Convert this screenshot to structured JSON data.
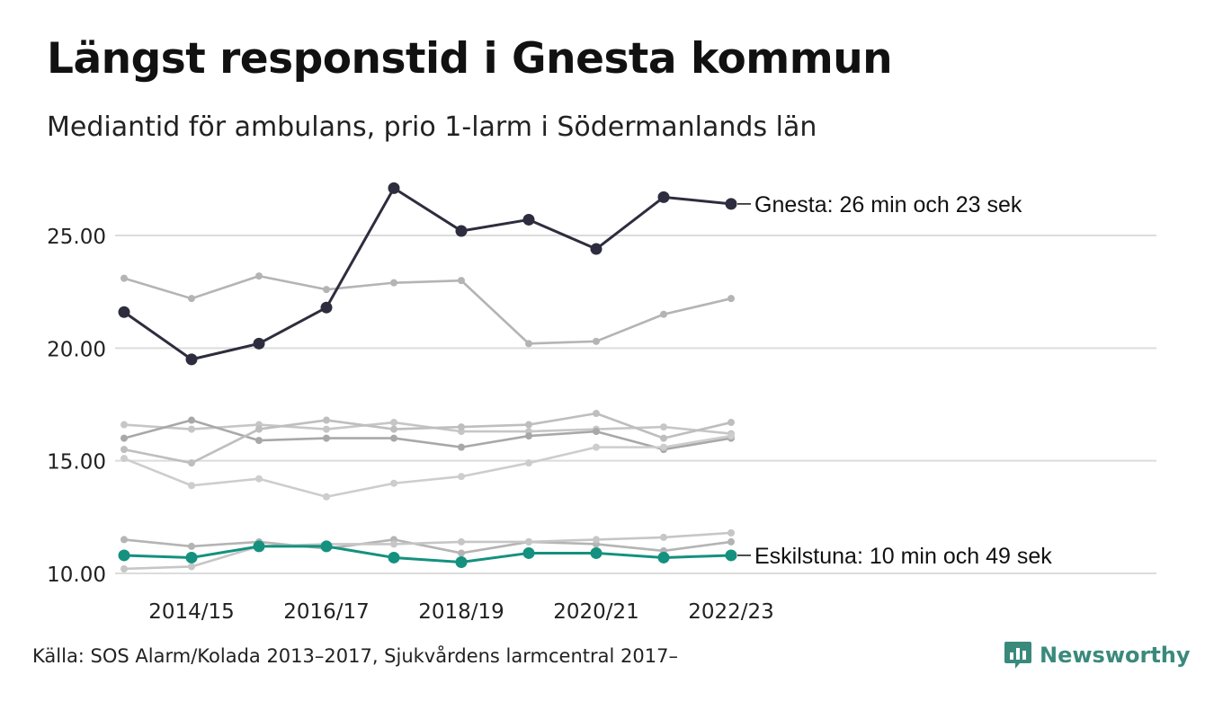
{
  "title": "Längst responstid i Gnesta kommun",
  "subtitle": "Mediantid för ambulans, prio 1-larm i Södermanlands län",
  "source": "Källa: SOS Alarm/Kolada 2013–2017, Sjukvårdens larmcentral 2017–",
  "brand": {
    "name": "Newsworthy",
    "icon": "newsworthy-logo-icon",
    "color": "#3a8a7c"
  },
  "chart_data": {
    "type": "line",
    "x": [
      "2013/14",
      "2014/15",
      "2015/16",
      "2016/17",
      "2017/18",
      "2018/19",
      "2019/20",
      "2020/21",
      "2021/22",
      "2022/23"
    ],
    "x_tick_labels": [
      "2014/15",
      "2016/17",
      "2018/19",
      "2020/21",
      "2022/23"
    ],
    "y_ticks": [
      "10.00",
      "15.00",
      "20.00",
      "25.00"
    ],
    "ylim": [
      9.5,
      28.5
    ],
    "grid": "horizontal",
    "colors": {
      "highlight_dark": "#2e2d3f",
      "highlight_teal": "#14917f",
      "muted": [
        "#b4b4b4",
        "#c6c6c6",
        "#a8a8a8",
        "#bebebe",
        "#cdcdcd"
      ]
    },
    "series": [
      {
        "values": [
          23.1,
          22.2,
          23.2,
          22.6,
          22.9,
          23.0,
          20.2,
          20.3,
          21.5,
          22.2
        ],
        "style": "muted"
      },
      {
        "values": [
          16.6,
          16.4,
          16.6,
          16.4,
          16.7,
          16.3,
          16.3,
          16.4,
          16.5,
          16.2
        ],
        "style": "muted"
      },
      {
        "values": [
          16.0,
          16.8,
          15.9,
          16.0,
          16.0,
          15.6,
          16.1,
          16.3,
          15.5,
          16.0
        ],
        "style": "muted"
      },
      {
        "values": [
          15.5,
          14.9,
          16.4,
          16.8,
          16.4,
          16.5,
          16.6,
          17.1,
          16.0,
          16.7
        ],
        "style": "muted"
      },
      {
        "values": [
          15.1,
          13.9,
          14.2,
          13.4,
          14.0,
          14.3,
          14.9,
          15.6,
          15.6,
          16.1
        ],
        "style": "muted"
      },
      {
        "values": [
          11.5,
          11.2,
          11.4,
          11.1,
          11.5,
          10.9,
          11.4,
          11.3,
          11.0,
          11.4
        ],
        "style": "muted"
      },
      {
        "values": [
          10.2,
          10.3,
          11.2,
          11.3,
          11.3,
          11.4,
          11.4,
          11.5,
          11.6,
          11.8
        ],
        "style": "muted"
      },
      {
        "name": "Gnesta",
        "values": [
          21.6,
          19.5,
          20.2,
          21.8,
          27.1,
          25.2,
          25.7,
          24.4,
          26.7,
          26.4
        ],
        "style": "highlight_dark"
      },
      {
        "name": "Eskilstuna",
        "values": [
          10.8,
          10.7,
          11.2,
          11.2,
          10.7,
          10.5,
          10.9,
          10.9,
          10.7,
          10.8
        ],
        "style": "highlight_teal"
      }
    ],
    "annotations": [
      {
        "series": "Gnesta",
        "text": "Gnesta: 26 min och 23 sek"
      },
      {
        "series": "Eskilstuna",
        "text": "Eskilstuna: 10 min och 49 sek"
      }
    ]
  }
}
